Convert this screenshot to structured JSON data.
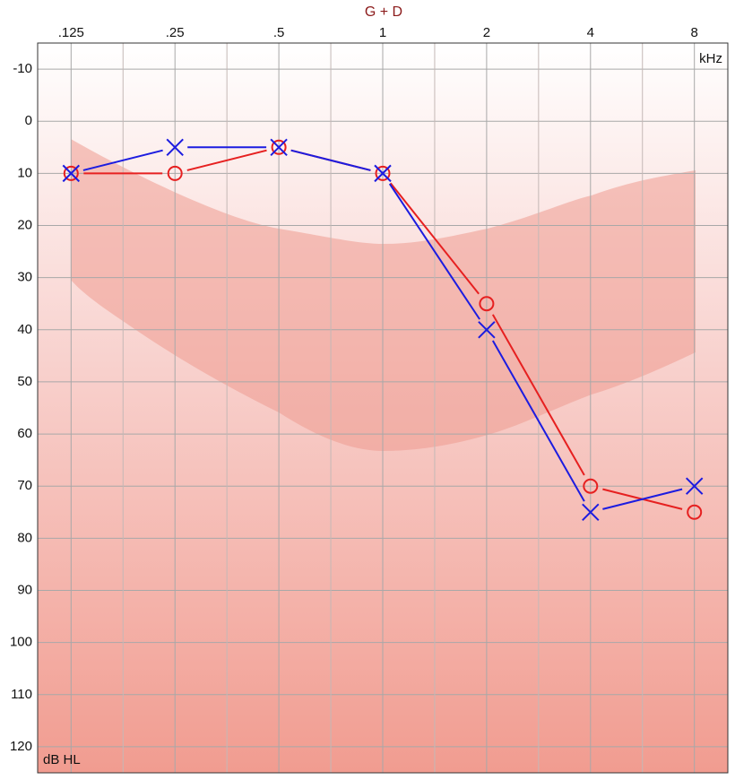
{
  "chart_data": {
    "type": "audiogram",
    "title": "G + D",
    "xlabel": "kHz",
    "ylabel": "dB HL",
    "xscale": "log",
    "yinverted": true,
    "grid": true,
    "x": [
      0.125,
      0.25,
      0.5,
      1,
      2,
      4,
      8
    ],
    "xlim": [
      0.1,
      10
    ],
    "xticks": [
      {
        "value": 0.125,
        "label": ".125"
      },
      {
        "value": 0.25,
        "label": ".25"
      },
      {
        "value": 0.5,
        "label": ".5"
      },
      1,
      2,
      4,
      8
    ],
    "ylim": [
      -15,
      125
    ],
    "yticks": [
      -10,
      0,
      10,
      20,
      30,
      40,
      50,
      60,
      70,
      80,
      90,
      100,
      110,
      120
    ],
    "series": [
      {
        "color": "#e62020",
        "marker": "circle",
        "values": [
          10,
          10,
          5,
          10,
          35,
          70,
          75
        ]
      },
      {
        "color": "#1c1ce0",
        "marker": "cross",
        "values": [
          10,
          5,
          5,
          10,
          40,
          75,
          70
        ]
      }
    ]
  }
}
